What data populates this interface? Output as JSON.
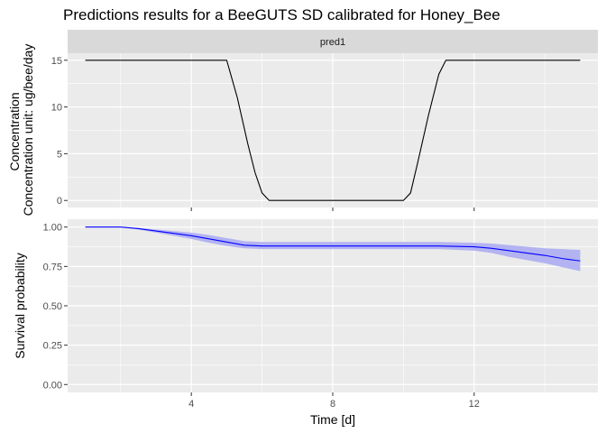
{
  "chart_data": {
    "type": "line",
    "title": "Predictions results for a BeeGUTS SD calibrated for Honey_Bee",
    "xlabel": "Time [d]",
    "xlim": [
      0.5,
      15.5
    ],
    "x_ticks": [
      4,
      8,
      12
    ],
    "x_tick_labels": [
      "4",
      "8",
      "12"
    ],
    "grid": true,
    "colors": {
      "panel_bg": "#ebebeb",
      "strip_bg": "#d9d9d9",
      "grid": "#ffffff",
      "concentration_line": "#000000",
      "survival_line": "#0000ff",
      "survival_band": "#b3b3f2"
    },
    "panels": [
      {
        "strip": "pred1",
        "ylabel_lines": [
          "Concentration",
          "Concentration unit: ug/bee/day"
        ],
        "ylim": [
          -0.75,
          15.75
        ],
        "y_ticks": [
          0,
          5,
          10,
          15
        ],
        "y_tick_labels": [
          "0",
          "5",
          "10",
          "15"
        ],
        "series": [
          {
            "x": [
              1,
              5,
              5.3,
              5.6,
              5.8,
              6.0,
              6.2,
              10.0,
              10.2,
              10.4,
              10.7,
              11.0,
              11.2,
              15
            ],
            "y": [
              15,
              15,
              11,
              6,
              3,
              0.8,
              0,
              0,
              0.8,
              4,
              9,
              13.5,
              15,
              15
            ]
          }
        ]
      },
      {
        "strip": "",
        "ylabel_lines": [
          "Survival probability"
        ],
        "ylim": [
          -0.05,
          1.05
        ],
        "y_ticks": [
          0,
          0.25,
          0.5,
          0.75,
          1
        ],
        "y_tick_labels": [
          "0.00",
          "0.25",
          "0.50",
          "0.75",
          "1.00"
        ],
        "series": [
          {
            "x": [
              1,
              2,
              2.5,
              3,
              3.5,
              4,
              4.5,
              5,
              5.5,
              6,
              7,
              8,
              9,
              10,
              11,
              12,
              12.5,
              13,
              13.5,
              14,
              14.5,
              15
            ],
            "y": [
              1.0,
              1.0,
              0.99,
              0.975,
              0.96,
              0.945,
              0.925,
              0.905,
              0.885,
              0.88,
              0.88,
              0.88,
              0.88,
              0.88,
              0.88,
              0.875,
              0.865,
              0.85,
              0.835,
              0.82,
              0.8,
              0.785
            ],
            "lower": [
              1.0,
              1.0,
              0.985,
              0.965,
              0.945,
              0.925,
              0.9,
              0.88,
              0.865,
              0.86,
              0.86,
              0.86,
              0.86,
              0.86,
              0.86,
              0.85,
              0.835,
              0.81,
              0.79,
              0.77,
              0.745,
              0.72
            ],
            "upper": [
              1.0,
              1.0,
              0.995,
              0.985,
              0.975,
              0.965,
              0.95,
              0.93,
              0.91,
              0.905,
              0.905,
              0.905,
              0.905,
              0.905,
              0.905,
              0.9,
              0.895,
              0.885,
              0.875,
              0.865,
              0.86,
              0.855
            ]
          }
        ]
      }
    ]
  }
}
